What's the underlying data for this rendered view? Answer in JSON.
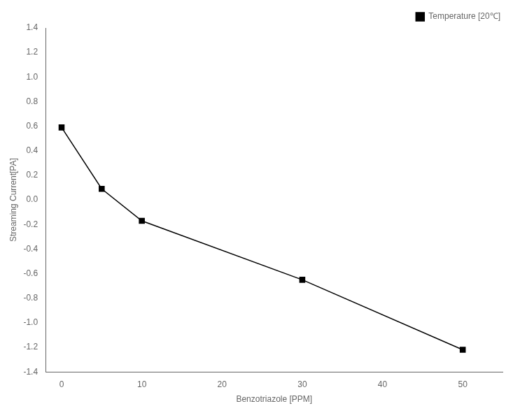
{
  "chart_data": {
    "type": "line",
    "x": [
      0,
      5,
      10,
      30,
      50
    ],
    "series": [
      {
        "name": "Temperature [20℃]",
        "color": "#000000",
        "marker": "square",
        "values": [
          0.59,
          0.09,
          -0.17,
          -0.65,
          -1.22
        ]
      }
    ],
    "xlabel": "Benzotriazole [PPM]",
    "ylabel": "Streaming Current[PA]",
    "xlim": [
      -2,
      55
    ],
    "xticks": [
      0,
      10,
      20,
      30,
      40,
      50
    ],
    "ylim": [
      -1.4,
      1.4
    ],
    "yticks": [
      -1.4,
      -1.2,
      {
        "value": -1.0,
        "label": "-1.0"
      },
      -0.8,
      -0.6,
      -0.4,
      -0.2,
      {
        "value": 0.0,
        "label": "0.0"
      },
      0.2,
      0.4,
      0.6,
      0.8,
      {
        "value": 1.0,
        "label": "1.0"
      },
      1.2,
      1.4
    ],
    "grid": false,
    "legend": "upper right"
  }
}
